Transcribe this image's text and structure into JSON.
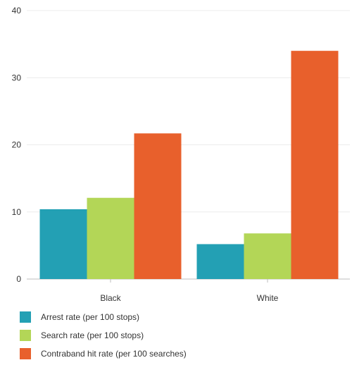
{
  "chart_data": {
    "type": "bar",
    "categories": [
      "Black",
      "White"
    ],
    "series": [
      {
        "name": "Arrest rate (per 100 stops)",
        "color": "#23a0b4",
        "values": [
          10.4,
          5.2
        ]
      },
      {
        "name": "Search rate (per 100 stops)",
        "color": "#b3d657",
        "values": [
          12.1,
          6.8
        ]
      },
      {
        "name": "Contraband hit rate (per 100 searches)",
        "color": "#e8602c",
        "values": [
          21.7,
          34.0
        ]
      }
    ],
    "ylim": [
      0,
      40
    ],
    "yticks": [
      0,
      10,
      20,
      30,
      40
    ],
    "grid": true,
    "legend_position": "bottom-left"
  }
}
